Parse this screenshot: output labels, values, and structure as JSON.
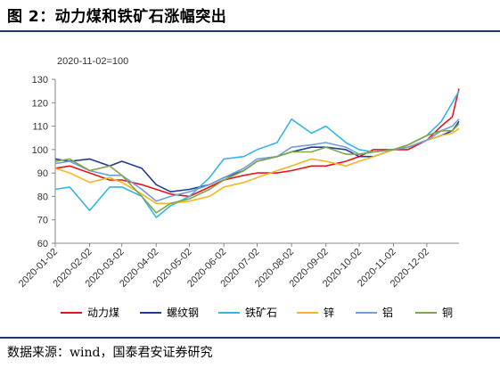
{
  "header": {
    "title": "图 2：动力煤和铁矿石涨幅突出"
  },
  "footer": {
    "source": "数据来源：wind，国泰君安证券研究"
  },
  "chart_data": {
    "type": "line",
    "annotation": "2020-11-02=100",
    "xlabel": "",
    "ylabel": "",
    "ylim": [
      60,
      130
    ],
    "y_ticks": [
      "60",
      "70",
      "80",
      "90",
      "100",
      "110",
      "120",
      "130"
    ],
    "x_ticks": [
      "2020-01-02",
      "2020-02-02",
      "2020-03-02",
      "2020-04-02",
      "2020-05-02",
      "2020-06-02",
      "2020-07-02",
      "2020-08-02",
      "2020-09-02",
      "2020-10-02",
      "2020-11-02",
      "2020-12-02"
    ],
    "grid": false,
    "legend_position": "bottom",
    "series": [
      {
        "name": "动力煤",
        "color": "#e8141c",
        "points": [
          [
            "2020-01-02",
            92
          ],
          [
            "2020-01-15",
            93
          ],
          [
            "2020-02-02",
            90
          ],
          [
            "2020-02-20",
            87
          ],
          [
            "2020-03-02",
            87
          ],
          [
            "2020-03-20",
            85
          ],
          [
            "2020-04-02",
            83
          ],
          [
            "2020-04-15",
            81
          ],
          [
            "2020-05-02",
            80
          ],
          [
            "2020-05-20",
            84
          ],
          [
            "2020-06-02",
            87
          ],
          [
            "2020-06-20",
            89
          ],
          [
            "2020-07-02",
            90
          ],
          [
            "2020-07-20",
            90
          ],
          [
            "2020-08-02",
            91
          ],
          [
            "2020-08-20",
            93
          ],
          [
            "2020-09-02",
            93
          ],
          [
            "2020-09-20",
            95
          ],
          [
            "2020-10-02",
            97
          ],
          [
            "2020-10-15",
            100
          ],
          [
            "2020-11-02",
            100
          ],
          [
            "2020-11-15",
            100
          ],
          [
            "2020-12-02",
            104
          ],
          [
            "2020-12-15",
            110
          ],
          [
            "2020-12-25",
            114
          ],
          [
            "2020-12-31",
            126
          ]
        ]
      },
      {
        "name": "螺纹钢",
        "color": "#1f3e8f",
        "points": [
          [
            "2020-01-02",
            96
          ],
          [
            "2020-01-15",
            95
          ],
          [
            "2020-02-02",
            96
          ],
          [
            "2020-02-20",
            93
          ],
          [
            "2020-03-02",
            95
          ],
          [
            "2020-03-20",
            92
          ],
          [
            "2020-04-02",
            85
          ],
          [
            "2020-04-15",
            82
          ],
          [
            "2020-05-02",
            83
          ],
          [
            "2020-05-20",
            85
          ],
          [
            "2020-06-02",
            88
          ],
          [
            "2020-06-20",
            91
          ],
          [
            "2020-07-02",
            95
          ],
          [
            "2020-07-20",
            97
          ],
          [
            "2020-08-02",
            99
          ],
          [
            "2020-08-20",
            101
          ],
          [
            "2020-09-02",
            101
          ],
          [
            "2020-09-20",
            100
          ],
          [
            "2020-10-02",
            97
          ],
          [
            "2020-10-15",
            97
          ],
          [
            "2020-11-02",
            100
          ],
          [
            "2020-11-15",
            101
          ],
          [
            "2020-12-02",
            104
          ],
          [
            "2020-12-15",
            106
          ],
          [
            "2020-12-25",
            108
          ],
          [
            "2020-12-31",
            112
          ]
        ]
      },
      {
        "name": "铁矿石",
        "color": "#35b6e6",
        "points": [
          [
            "2020-01-02",
            83
          ],
          [
            "2020-01-15",
            84
          ],
          [
            "2020-02-02",
            74
          ],
          [
            "2020-02-20",
            84
          ],
          [
            "2020-03-02",
            84
          ],
          [
            "2020-03-20",
            80
          ],
          [
            "2020-04-02",
            71
          ],
          [
            "2020-04-15",
            76
          ],
          [
            "2020-05-02",
            80
          ],
          [
            "2020-05-20",
            88
          ],
          [
            "2020-06-02",
            96
          ],
          [
            "2020-06-20",
            97
          ],
          [
            "2020-07-02",
            100
          ],
          [
            "2020-07-20",
            103
          ],
          [
            "2020-08-02",
            113
          ],
          [
            "2020-08-20",
            107
          ],
          [
            "2020-09-02",
            110
          ],
          [
            "2020-09-20",
            103
          ],
          [
            "2020-10-02",
            100
          ],
          [
            "2020-10-15",
            99
          ],
          [
            "2020-11-02",
            100
          ],
          [
            "2020-11-15",
            102
          ],
          [
            "2020-12-02",
            106
          ],
          [
            "2020-12-15",
            112
          ],
          [
            "2020-12-25",
            120
          ],
          [
            "2020-12-31",
            125
          ]
        ]
      },
      {
        "name": "锌",
        "color": "#f5b622",
        "points": [
          [
            "2020-01-02",
            92
          ],
          [
            "2020-01-15",
            90
          ],
          [
            "2020-02-02",
            86
          ],
          [
            "2020-02-20",
            88
          ],
          [
            "2020-03-02",
            86
          ],
          [
            "2020-03-20",
            81
          ],
          [
            "2020-04-02",
            77
          ],
          [
            "2020-04-15",
            77
          ],
          [
            "2020-05-02",
            78
          ],
          [
            "2020-05-20",
            80
          ],
          [
            "2020-06-02",
            84
          ],
          [
            "2020-06-20",
            86
          ],
          [
            "2020-07-02",
            88
          ],
          [
            "2020-07-20",
            91
          ],
          [
            "2020-08-02",
            93
          ],
          [
            "2020-08-20",
            96
          ],
          [
            "2020-09-02",
            95
          ],
          [
            "2020-09-20",
            93
          ],
          [
            "2020-10-02",
            95
          ],
          [
            "2020-10-15",
            97
          ],
          [
            "2020-11-02",
            100
          ],
          [
            "2020-11-15",
            101
          ],
          [
            "2020-12-02",
            104
          ],
          [
            "2020-12-15",
            106
          ],
          [
            "2020-12-25",
            107
          ],
          [
            "2020-12-31",
            109
          ]
        ]
      },
      {
        "name": "铝",
        "color": "#6f9fd8",
        "points": [
          [
            "2020-01-02",
            94
          ],
          [
            "2020-01-15",
            95
          ],
          [
            "2020-02-02",
            91
          ],
          [
            "2020-02-20",
            89
          ],
          [
            "2020-03-02",
            89
          ],
          [
            "2020-03-20",
            83
          ],
          [
            "2020-04-02",
            78
          ],
          [
            "2020-04-15",
            80
          ],
          [
            "2020-05-02",
            82
          ],
          [
            "2020-05-20",
            85
          ],
          [
            "2020-06-02",
            88
          ],
          [
            "2020-06-20",
            92
          ],
          [
            "2020-07-02",
            96
          ],
          [
            "2020-07-20",
            97
          ],
          [
            "2020-08-02",
            101
          ],
          [
            "2020-08-20",
            102
          ],
          [
            "2020-09-02",
            103
          ],
          [
            "2020-09-20",
            101
          ],
          [
            "2020-10-02",
            98
          ],
          [
            "2020-10-15",
            99
          ],
          [
            "2020-11-02",
            100
          ],
          [
            "2020-11-15",
            101
          ],
          [
            "2020-12-02",
            104
          ],
          [
            "2020-12-15",
            108
          ],
          [
            "2020-12-25",
            110
          ],
          [
            "2020-12-31",
            113
          ]
        ]
      },
      {
        "name": "铜",
        "color": "#7fa54d",
        "points": [
          [
            "2020-01-02",
            95
          ],
          [
            "2020-01-15",
            96
          ],
          [
            "2020-02-02",
            91
          ],
          [
            "2020-02-20",
            93
          ],
          [
            "2020-03-02",
            89
          ],
          [
            "2020-03-20",
            80
          ],
          [
            "2020-04-02",
            73
          ],
          [
            "2020-04-15",
            77
          ],
          [
            "2020-05-02",
            79
          ],
          [
            "2020-05-20",
            83
          ],
          [
            "2020-06-02",
            87
          ],
          [
            "2020-06-20",
            91
          ],
          [
            "2020-07-02",
            95
          ],
          [
            "2020-07-20",
            97
          ],
          [
            "2020-08-02",
            99
          ],
          [
            "2020-08-20",
            99
          ],
          [
            "2020-09-02",
            101
          ],
          [
            "2020-09-20",
            98
          ],
          [
            "2020-10-02",
            98
          ],
          [
            "2020-10-15",
            99
          ],
          [
            "2020-11-02",
            100
          ],
          [
            "2020-11-15",
            102
          ],
          [
            "2020-12-02",
            106
          ],
          [
            "2020-12-15",
            108
          ],
          [
            "2020-12-25",
            108
          ],
          [
            "2020-12-31",
            111
          ]
        ]
      }
    ]
  }
}
